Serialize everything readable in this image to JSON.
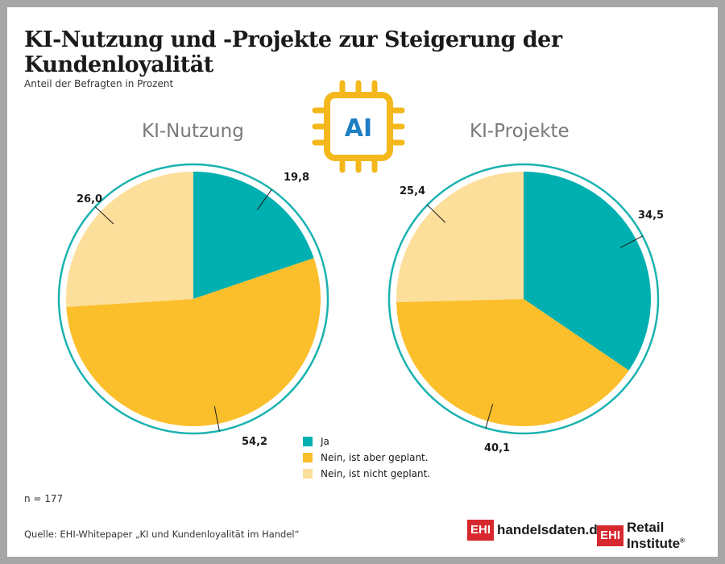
{
  "title": "KI-Nutzung und -Projekte zur Steigerung der Kundenloyalität",
  "subtitle": "Anteil der Befragten in Prozent",
  "ai_icon": {
    "icon": "ai-chip-icon",
    "text": "AI",
    "color": "#f4b81c",
    "text_color": "#1e7fc2"
  },
  "colors": {
    "ja": "#00b0b0",
    "geplant": "#fbbf2c",
    "nicht_geplant": "#fddf9c",
    "ring": "#1ab2b0"
  },
  "chart_data": [
    {
      "type": "pie",
      "title": "KI-Nutzung",
      "categories": [
        "Ja",
        "Nein, ist aber geplant.",
        "Nein, ist nicht geplant."
      ],
      "values": [
        19.8,
        54.2,
        26.0
      ],
      "value_labels": [
        "19,8",
        "54,2",
        "26,0"
      ]
    },
    {
      "type": "pie",
      "title": "KI-Projekte",
      "categories": [
        "Ja",
        "Nein, ist aber geplant.",
        "Nein, ist nicht geplant."
      ],
      "values": [
        34.5,
        40.1,
        25.4
      ],
      "value_labels": [
        "34,5",
        "40,1",
        "25,4"
      ]
    }
  ],
  "legend": [
    "Ja",
    "Nein, ist aber geplant.",
    "Nein, ist nicht geplant."
  ],
  "n_label": "n = 177",
  "source": "Quelle: EHI-Whitepaper „KI und Kundenloyalität im Handel“",
  "logos": {
    "handelsdaten": {
      "badge": "EHI",
      "word": "handelsdaten.de"
    },
    "ehi": {
      "badge": "EHI",
      "word": "Retail Institute",
      "mark": "®"
    }
  }
}
